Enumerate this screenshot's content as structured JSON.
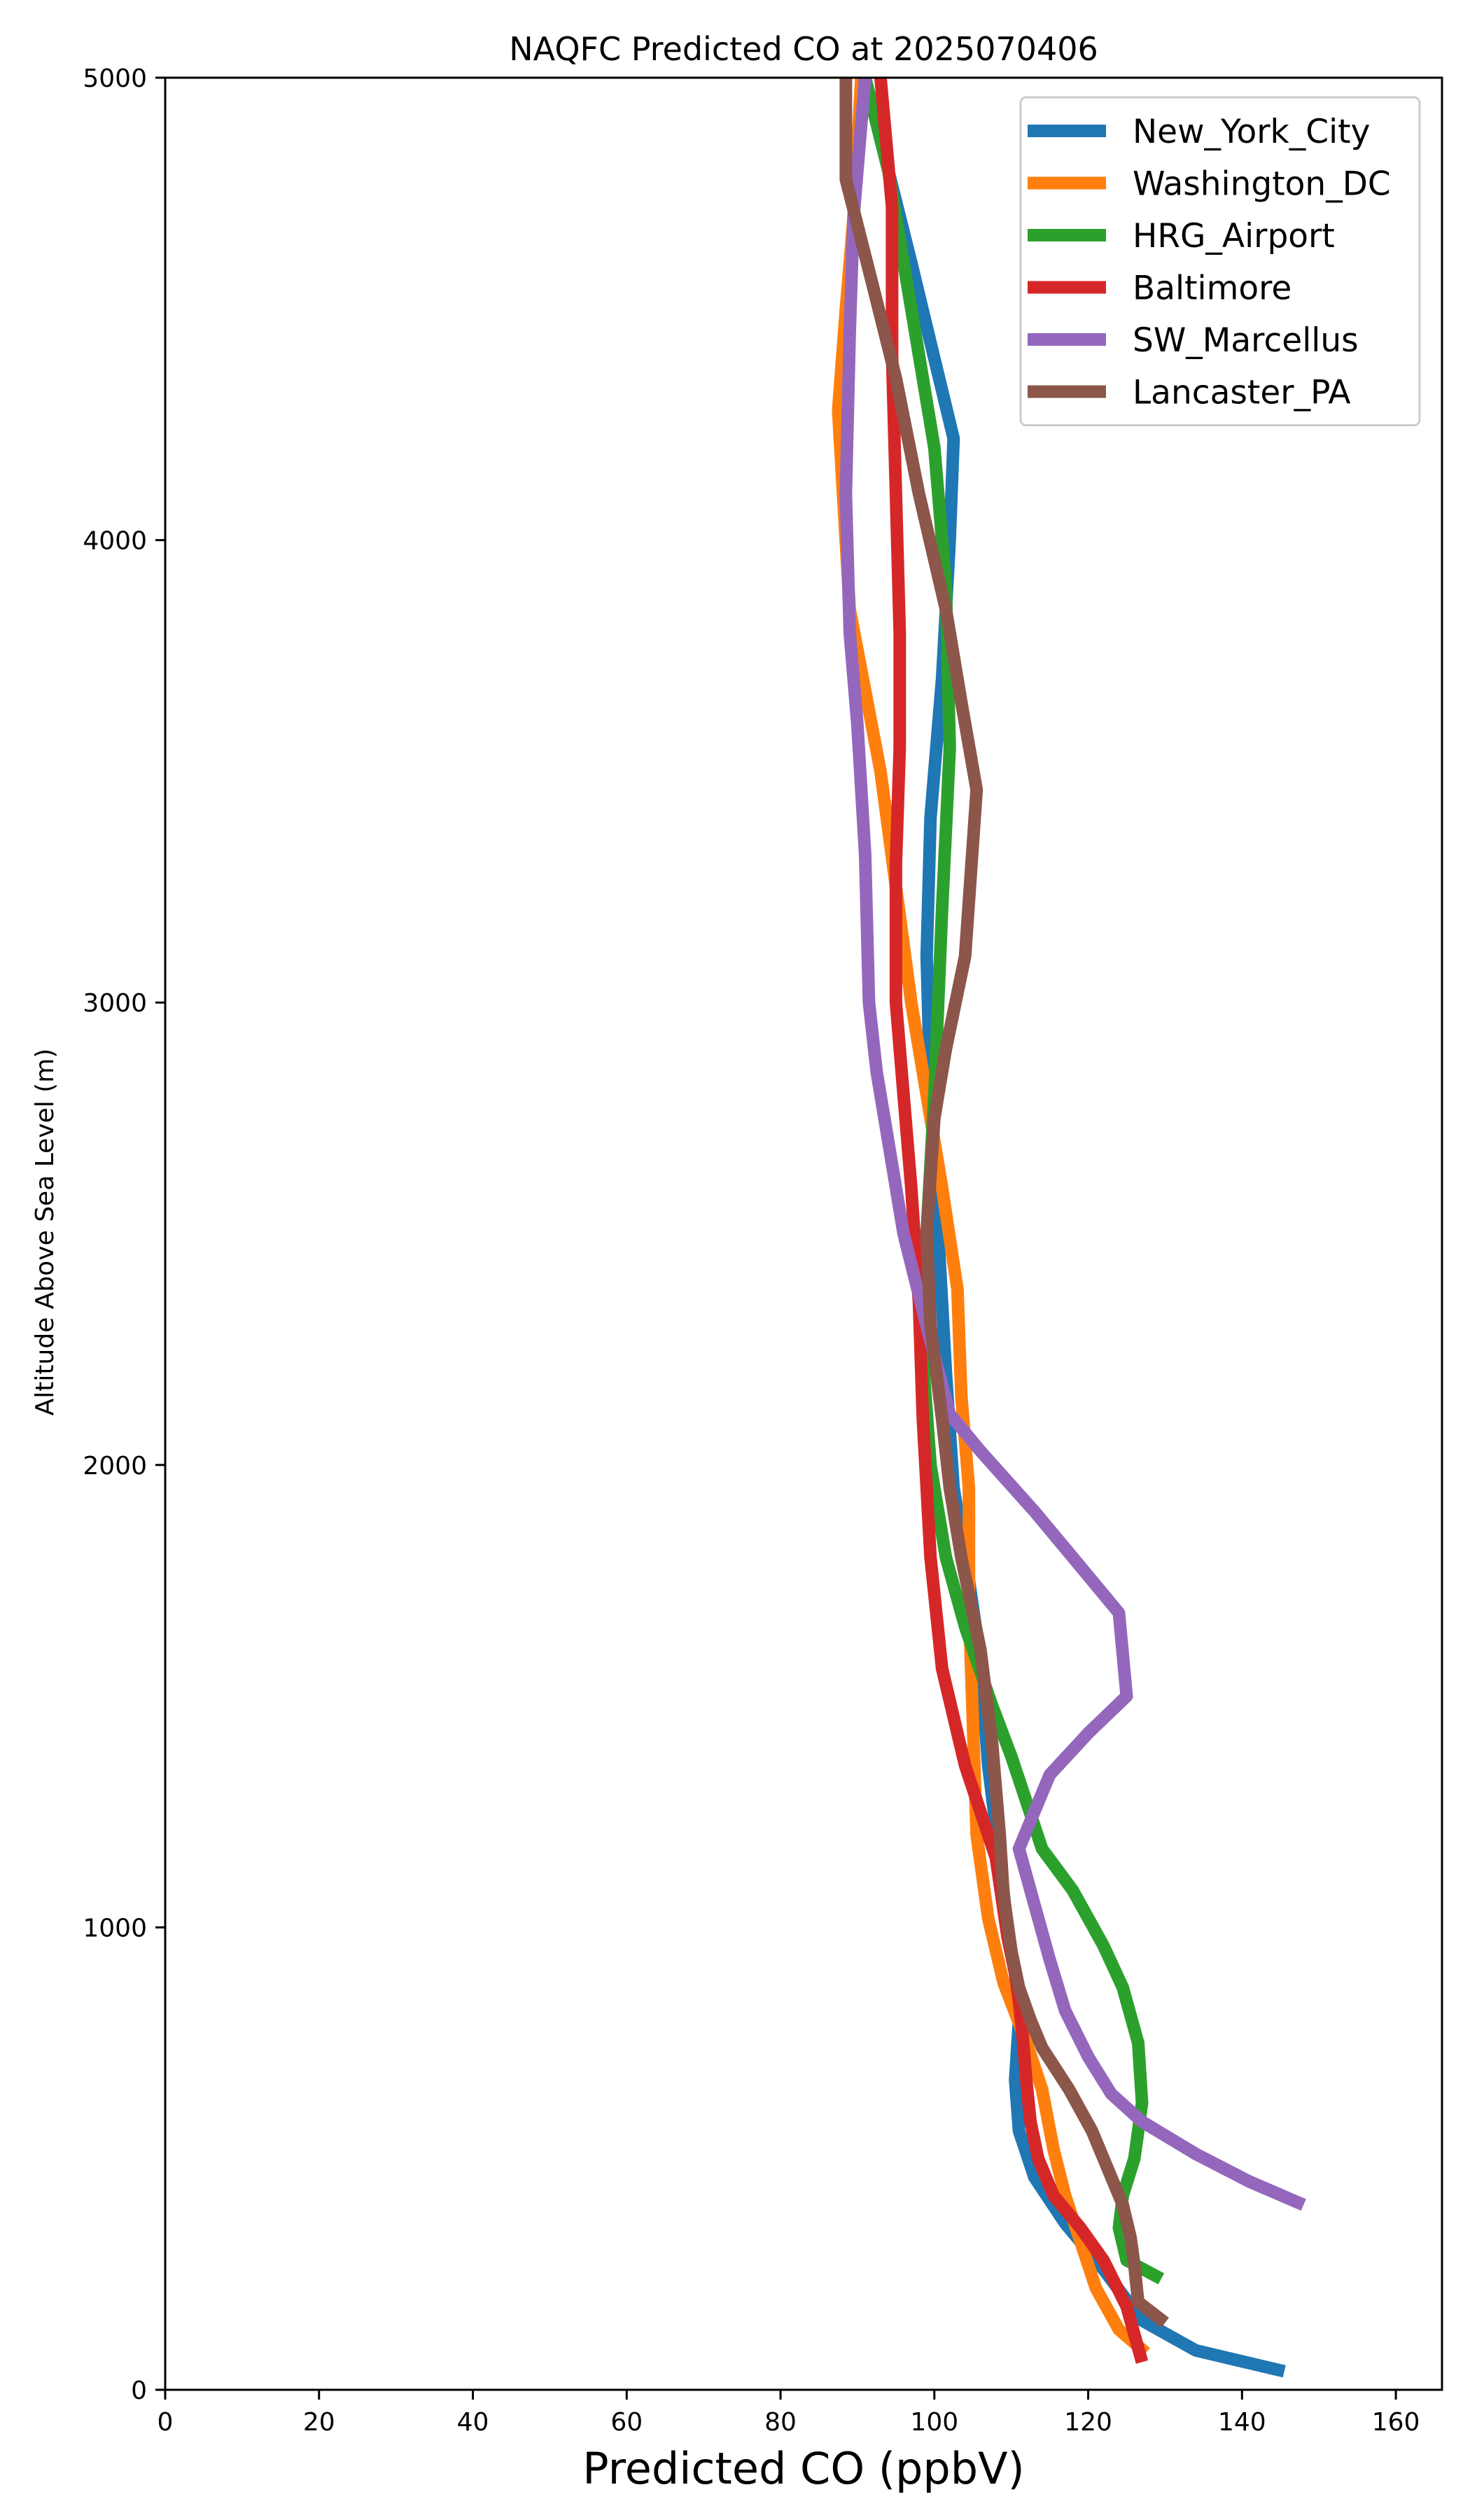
{
  "chart_data": {
    "type": "line",
    "title": "NAQFC Predicted CO at 2025070406",
    "xlabel": "Predicted CO (ppbV)",
    "ylabel": "Altitude Above Sea Level (m)",
    "xlim": [
      0,
      166
    ],
    "ylim": [
      0,
      5000
    ],
    "xticks": [
      0,
      20,
      40,
      60,
      80,
      100,
      120,
      140,
      160
    ],
    "yticks": [
      0,
      1000,
      2000,
      3000,
      4000,
      5000
    ],
    "grid": false,
    "legend_position": "top-right",
    "series": [
      {
        "name": "New_York_City",
        "color": "#1f77b4",
        "points": [
          [
            145.5,
            40
          ],
          [
            134,
            85
          ],
          [
            127,
            150
          ],
          [
            122,
            260
          ],
          [
            117,
            360
          ],
          [
            113,
            460
          ],
          [
            111,
            560
          ],
          [
            110.5,
            670
          ],
          [
            111,
            800
          ],
          [
            110.5,
            900
          ],
          [
            109.5,
            1000
          ],
          [
            108.5,
            1150
          ],
          [
            107,
            1350
          ],
          [
            106,
            1580
          ],
          [
            104.5,
            1750
          ],
          [
            102.5,
            1950
          ],
          [
            101.5,
            2200
          ],
          [
            100.5,
            2500
          ],
          [
            99.5,
            2800
          ],
          [
            99,
            3100
          ],
          [
            99.5,
            3400
          ],
          [
            101,
            3700
          ],
          [
            102,
            4000
          ],
          [
            102.5,
            4220
          ],
          [
            97,
            4600
          ],
          [
            91,
            5000
          ]
        ]
      },
      {
        "name": "Washington_DC",
        "color": "#ff7f0e",
        "points": [
          [
            127.5,
            80
          ],
          [
            124,
            130
          ],
          [
            121,
            220
          ],
          [
            119,
            320
          ],
          [
            117,
            420
          ],
          [
            115.5,
            520
          ],
          [
            114,
            650
          ],
          [
            112,
            750
          ],
          [
            109,
            880
          ],
          [
            107,
            1020
          ],
          [
            105.5,
            1200
          ],
          [
            105,
            1450
          ],
          [
            104.5,
            1700
          ],
          [
            104.5,
            1950
          ],
          [
            103.5,
            2150
          ],
          [
            103,
            2380
          ],
          [
            101,
            2600
          ],
          [
            99,
            2800
          ],
          [
            97,
            3000
          ],
          [
            95,
            3250
          ],
          [
            93,
            3500
          ],
          [
            89,
            3850
          ],
          [
            87.5,
            4280
          ],
          [
            88.5,
            4500
          ],
          [
            89.5,
            4700
          ],
          [
            90.5,
            5000
          ]
        ]
      },
      {
        "name": "HRG_Airport",
        "color": "#2ca02c",
        "points": [
          [
            129.5,
            240
          ],
          [
            125,
            280
          ],
          [
            124,
            350
          ],
          [
            124.5,
            420
          ],
          [
            126,
            500
          ],
          [
            127,
            620
          ],
          [
            126.5,
            750
          ],
          [
            124.5,
            870
          ],
          [
            122,
            960
          ],
          [
            118,
            1080
          ],
          [
            114,
            1170
          ],
          [
            112,
            1270
          ],
          [
            110,
            1370
          ],
          [
            107.5,
            1480
          ],
          [
            104,
            1650
          ],
          [
            101.5,
            1800
          ],
          [
            99.5,
            2000
          ],
          [
            98.5,
            2230
          ],
          [
            99,
            2500
          ],
          [
            100,
            2800
          ],
          [
            101,
            3200
          ],
          [
            102,
            3550
          ],
          [
            101.5,
            3900
          ],
          [
            100,
            4200
          ],
          [
            97,
            4500
          ],
          [
            94,
            4800
          ],
          [
            91,
            5000
          ]
        ]
      },
      {
        "name": "Baltimore",
        "color": "#d62728",
        "points": [
          [
            127,
            60
          ],
          [
            125,
            180
          ],
          [
            122,
            280
          ],
          [
            119,
            350
          ],
          [
            115.5,
            420
          ],
          [
            113.5,
            500
          ],
          [
            112.5,
            580
          ],
          [
            112,
            660
          ],
          [
            111.5,
            760
          ],
          [
            111,
            840
          ],
          [
            110.5,
            900
          ],
          [
            109.5,
            980
          ],
          [
            108,
            1150
          ],
          [
            104,
            1350
          ],
          [
            101,
            1560
          ],
          [
            99.5,
            1800
          ],
          [
            98.5,
            2100
          ],
          [
            98,
            2350
          ],
          [
            97,
            2600
          ],
          [
            96,
            2800
          ],
          [
            95,
            3000
          ],
          [
            95,
            3300
          ],
          [
            95.5,
            3550
          ],
          [
            95.5,
            3800
          ],
          [
            95,
            4100
          ],
          [
            94.5,
            4400
          ],
          [
            94.5,
            4720
          ],
          [
            93,
            5000
          ]
        ]
      },
      {
        "name": "SW_Marcellus",
        "color": "#9467bd",
        "points": [
          [
            148,
            400
          ],
          [
            141,
            450
          ],
          [
            134,
            510
          ],
          [
            127,
            580
          ],
          [
            123,
            640
          ],
          [
            120,
            720
          ],
          [
            117,
            820
          ],
          [
            115,
            930
          ],
          [
            113,
            1050
          ],
          [
            111,
            1170
          ],
          [
            113,
            1250
          ],
          [
            115,
            1330
          ],
          [
            120,
            1420
          ],
          [
            125,
            1500
          ],
          [
            124,
            1680
          ],
          [
            118,
            1800
          ],
          [
            113,
            1900
          ],
          [
            106,
            2030
          ],
          [
            102,
            2110
          ],
          [
            99,
            2300
          ],
          [
            96,
            2500
          ],
          [
            94,
            2700
          ],
          [
            92.5,
            2850
          ],
          [
            91.5,
            3000
          ],
          [
            91,
            3320
          ],
          [
            90,
            3600
          ],
          [
            89,
            3800
          ],
          [
            88.5,
            4100
          ],
          [
            89,
            4450
          ],
          [
            89.5,
            4700
          ],
          [
            90.5,
            4900
          ],
          [
            91,
            5000
          ]
        ]
      },
      {
        "name": "Lancaster_PA",
        "color": "#8c564b",
        "points": [
          [
            130,
            145
          ],
          [
            126.5,
            190
          ],
          [
            126,
            270
          ],
          [
            125.5,
            330
          ],
          [
            124.5,
            400
          ],
          [
            122.5,
            480
          ],
          [
            120.5,
            560
          ],
          [
            117.5,
            650
          ],
          [
            114,
            740
          ],
          [
            112.5,
            800
          ],
          [
            111,
            870
          ],
          [
            110,
            950
          ],
          [
            109,
            1070
          ],
          [
            108.5,
            1200
          ],
          [
            107.5,
            1400
          ],
          [
            106,
            1600
          ],
          [
            103.5,
            1800
          ],
          [
            102,
            1950
          ],
          [
            101,
            2100
          ],
          [
            99.5,
            2300
          ],
          [
            99,
            2500
          ],
          [
            100,
            2750
          ],
          [
            101.5,
            2900
          ],
          [
            104,
            3100
          ],
          [
            105.5,
            3460
          ],
          [
            103.5,
            3650
          ],
          [
            101.5,
            3850
          ],
          [
            98,
            4100
          ],
          [
            95,
            4350
          ],
          [
            92,
            4550
          ],
          [
            88.5,
            4780
          ],
          [
            88.5,
            5000
          ]
        ]
      }
    ]
  }
}
